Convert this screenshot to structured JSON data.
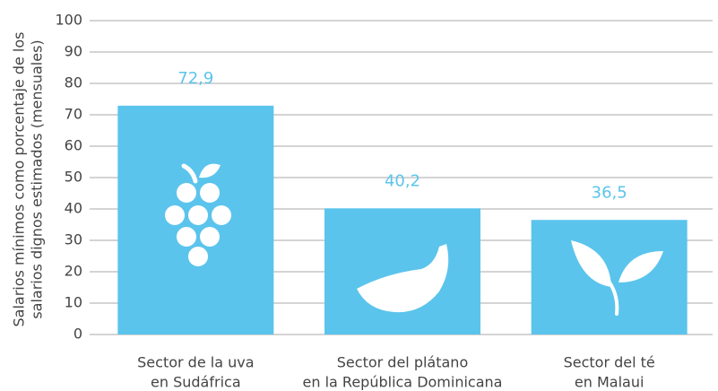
{
  "chart_data": {
    "type": "bar",
    "y_label": [
      "Salarios mínimos como porcentaje de los",
      "salarios dignos estimados (mensuales)"
    ],
    "categories": [
      [
        "Sector de la uva",
        "en Sudáfrica"
      ],
      [
        "Sector del plátano",
        "en la República Dominicana"
      ],
      [
        "Sector del té",
        "en Malaui"
      ]
    ],
    "values": [
      72.9,
      40.2,
      36.5
    ],
    "value_labels": [
      "72,9",
      "40,2",
      "36,5"
    ],
    "color": "#5bc4ec",
    "ylim": [
      0,
      100
    ],
    "yticks": [
      0,
      10,
      20,
      30,
      40,
      50,
      60,
      70,
      80,
      90,
      100
    ],
    "grid": true
  }
}
